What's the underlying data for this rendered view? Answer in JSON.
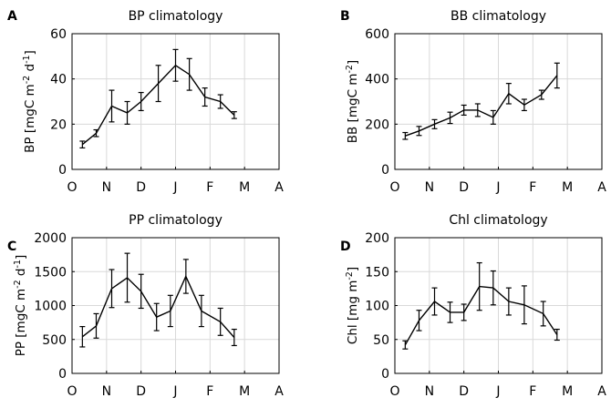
{
  "chart_data": [
    {
      "panel": "A",
      "type": "line",
      "title": "BP climatology",
      "ylabel": {
        "main": "BP [mgC m",
        "sup1": "-2",
        "mid": " d",
        "sup2": "-1",
        "end": "]"
      },
      "x_tick_labels": [
        "O",
        "N",
        "D",
        "J",
        "F",
        "M",
        "A"
      ],
      "xlim": [
        0,
        6
      ],
      "ylim": [
        0,
        60
      ],
      "yticks": [
        0,
        20,
        40,
        60
      ],
      "grid": true,
      "x": [
        0.3,
        0.7,
        1.15,
        1.6,
        2.0,
        2.5,
        3.0,
        3.4,
        3.85,
        4.3,
        4.7,
        5.3
      ],
      "values": [
        11,
        16,
        28,
        25,
        30,
        38,
        46,
        42,
        32,
        30,
        24,
        null
      ],
      "errors": [
        1.5,
        1.5,
        7,
        5,
        4,
        8,
        7,
        7,
        4,
        3,
        1.5,
        null
      ]
    },
    {
      "panel": "B",
      "type": "line",
      "title": "BB climatology",
      "ylabel": {
        "main": "BB [mgC m",
        "sup1": "-2",
        "mid": "",
        "sup2": "",
        "end": "]"
      },
      "x_tick_labels": [
        "O",
        "N",
        "D",
        "J",
        "F",
        "M",
        "A"
      ],
      "xlim": [
        0,
        6
      ],
      "ylim": [
        0,
        600
      ],
      "yticks": [
        0,
        200,
        400,
        600
      ],
      "grid": true,
      "x": [
        0.3,
        0.7,
        1.15,
        1.6,
        2.0,
        2.4,
        2.85,
        3.3,
        3.75,
        4.25,
        4.7,
        5.3
      ],
      "values": [
        148,
        170,
        200,
        228,
        262,
        262,
        230,
        335,
        285,
        330,
        415,
        null
      ],
      "errors": [
        15,
        20,
        20,
        25,
        22,
        28,
        30,
        45,
        25,
        20,
        55,
        null
      ]
    },
    {
      "panel": "C",
      "type": "line",
      "title": "PP climatology",
      "ylabel": {
        "main": "PP [mgC m",
        "sup1": "-2",
        "mid": " d",
        "sup2": "-1",
        "end": "]"
      },
      "x_tick_labels": [
        "O",
        "N",
        "D",
        "J",
        "F",
        "M",
        "A"
      ],
      "xlim": [
        0,
        6
      ],
      "ylim": [
        0,
        2000
      ],
      "yticks": [
        0,
        500,
        1000,
        1500,
        2000
      ],
      "grid": true,
      "x": [
        0.3,
        0.7,
        1.15,
        1.6,
        2.0,
        2.45,
        2.85,
        3.3,
        3.75,
        4.3,
        4.7
      ],
      "values": [
        540,
        700,
        1250,
        1410,
        1210,
        830,
        920,
        1430,
        920,
        760,
        530
      ],
      "errors": [
        150,
        180,
        280,
        360,
        250,
        200,
        230,
        250,
        230,
        200,
        120
      ]
    },
    {
      "panel": "D",
      "type": "line",
      "title": "Chl climatology",
      "ylabel": {
        "main": "Chl [mg m",
        "sup1": "-2",
        "mid": "",
        "sup2": "",
        "end": "]"
      },
      "x_tick_labels": [
        "O",
        "N",
        "D",
        "J",
        "F",
        "M",
        "A"
      ],
      "xlim": [
        0,
        6
      ],
      "ylim": [
        0,
        200
      ],
      "yticks": [
        0,
        50,
        100,
        150,
        200
      ],
      "grid": true,
      "x": [
        0.3,
        0.7,
        1.15,
        1.6,
        2.0,
        2.45,
        2.85,
        3.3,
        3.75,
        4.3,
        4.7
      ],
      "values": [
        42,
        78,
        106,
        90,
        90,
        128,
        126,
        106,
        101,
        88,
        57
      ],
      "errors": [
        6,
        15,
        20,
        15,
        12,
        35,
        25,
        20,
        28,
        18,
        8
      ]
    }
  ]
}
